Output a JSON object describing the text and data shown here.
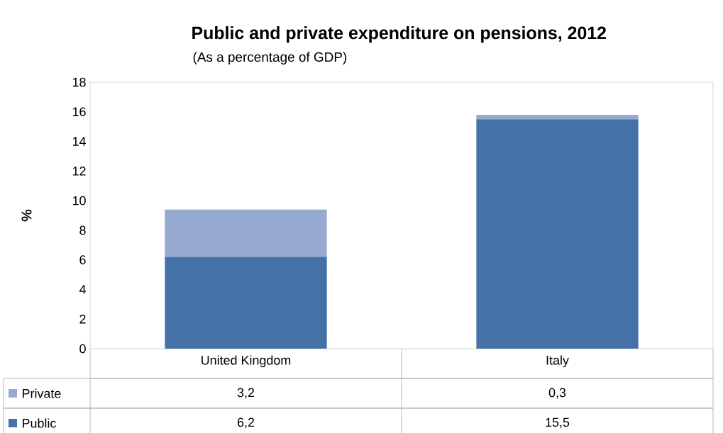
{
  "chart_data": {
    "type": "bar",
    "title": "Public and private expenditure on pensions, 2012",
    "subtitle": "(As a percentage of GDP)",
    "ylabel": "%",
    "categories": [
      "United Kingdom",
      "Italy"
    ],
    "series": [
      {
        "name": "Public",
        "color": "#4472a7",
        "values": [
          6.2,
          15.5
        ],
        "value_labels": [
          "6,2",
          "15,5"
        ]
      },
      {
        "name": "Private",
        "color": "#95a9d1",
        "values": [
          3.2,
          0.3
        ],
        "value_labels": [
          "3,2",
          "0,3"
        ]
      }
    ],
    "stacked": true,
    "ylim": [
      0,
      18
    ],
    "yticks": [
      0,
      2,
      4,
      6,
      8,
      10,
      12,
      14,
      16,
      18
    ],
    "legend": "bottom"
  }
}
